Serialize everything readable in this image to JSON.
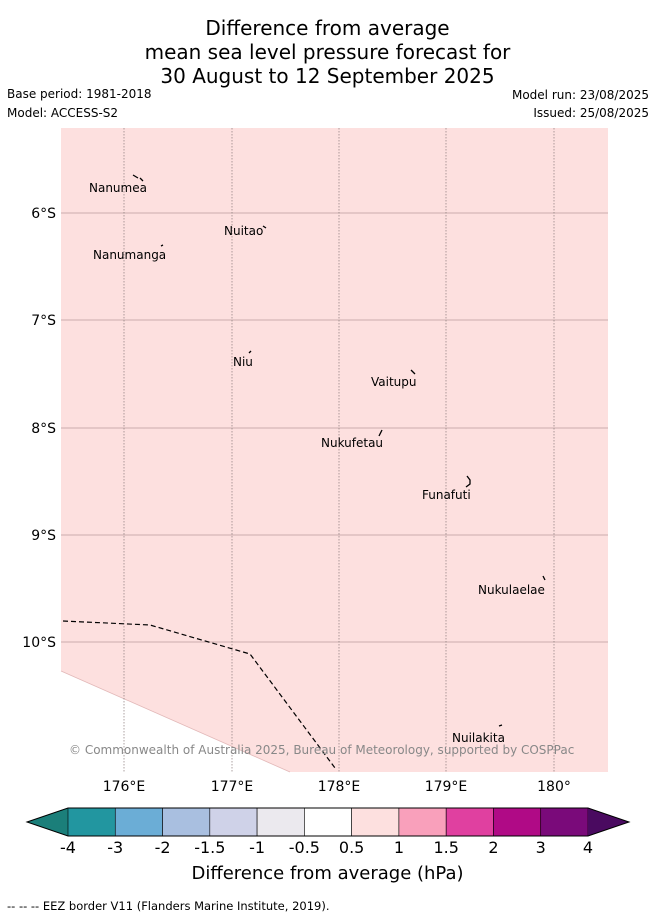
{
  "title": {
    "line1": "Difference from average",
    "line2": "mean sea level pressure forecast for",
    "line3": "30 August to 12 September 2025"
  },
  "meta": {
    "base_period": "Base period: 1981-2018",
    "model": "Model: ACCESS-S2",
    "model_run": "Model run: 23/08/2025",
    "issued": "Issued: 25/08/2025"
  },
  "map": {
    "field_color": "#fde0df",
    "latitude_labels": [
      "6°S",
      "7°S",
      "8°S",
      "9°S",
      "10°S"
    ],
    "longitude_labels": [
      "176°E",
      "177°E",
      "178°E",
      "179°E",
      "180°"
    ],
    "places": [
      {
        "name": "Nanumea"
      },
      {
        "name": "Nuitao"
      },
      {
        "name": "Nanumanga"
      },
      {
        "name": "Niu"
      },
      {
        "name": "Vaitupu"
      },
      {
        "name": "Nukufetau"
      },
      {
        "name": "Funafuti"
      },
      {
        "name": "Nukulaelae"
      },
      {
        "name": "Nuilakita"
      }
    ],
    "copyright": "© Commonwealth of Australia 2025, Bureau of Meteorology, supported by COSPPac"
  },
  "colorbar": {
    "ticks": [
      "-4",
      "-3",
      "-2",
      "-1.5",
      "-1",
      "-0.5",
      "0.5",
      "1",
      "1.5",
      "2",
      "3",
      "4"
    ],
    "colors": [
      "#1b7f7a",
      "#2296a0",
      "#6badd6",
      "#a9bfe0",
      "#cfd2e8",
      "#ebe9ee",
      "#ffffff",
      "#fde0df",
      "#f9a0bb",
      "#e040a0",
      "#b00a86",
      "#7a0a7a",
      "#4a0a60"
    ],
    "label": "Difference from average (hPa)"
  },
  "footer": "-- -- -- EEZ border V11 (Flanders Marine Institute, 2019)."
}
